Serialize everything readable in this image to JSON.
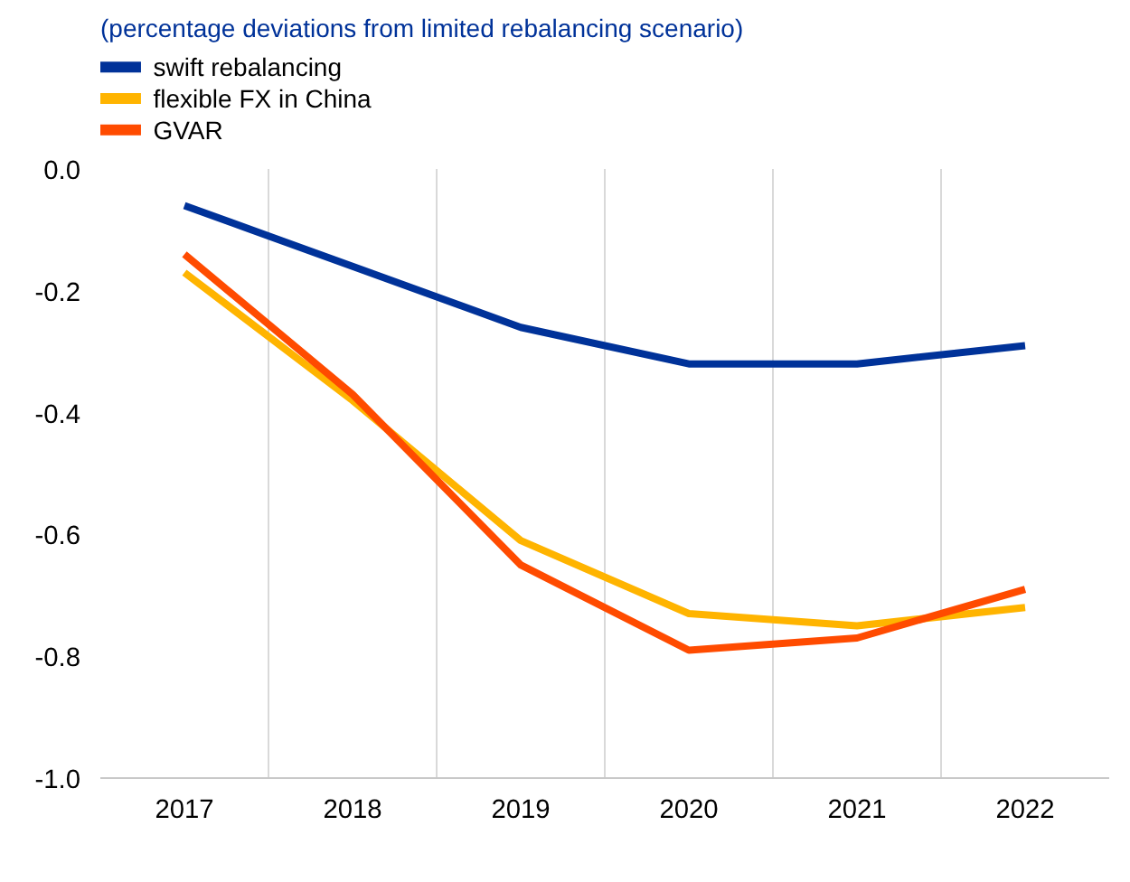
{
  "chart_data": {
    "type": "line",
    "title": "(percentage deviations from limited rebalancing scenario)",
    "categories": [
      "2017",
      "2018",
      "2019",
      "2020",
      "2021",
      "2022"
    ],
    "series": [
      {
        "name": "swift rebalancing",
        "color": "#003299",
        "values": [
          -0.06,
          -0.16,
          -0.26,
          -0.32,
          -0.32,
          -0.29
        ]
      },
      {
        "name": "flexible FX in China",
        "color": "#ffb400",
        "values": [
          -0.17,
          -0.38,
          -0.61,
          -0.73,
          -0.75,
          -0.72
        ]
      },
      {
        "name": "GVAR",
        "color": "#ff4b00",
        "values": [
          -0.14,
          -0.37,
          -0.65,
          -0.79,
          -0.77,
          -0.69
        ]
      }
    ],
    "ylim": [
      -1.0,
      0.0
    ],
    "yticks": [
      {
        "value": 0.0,
        "label": "0.0"
      },
      -0.2,
      -0.4,
      -0.6,
      -0.8,
      {
        "value": -1.0,
        "label": "-1.0"
      }
    ],
    "grid": "x",
    "legend": "top left",
    "marker": "none",
    "line_style": "solid"
  }
}
